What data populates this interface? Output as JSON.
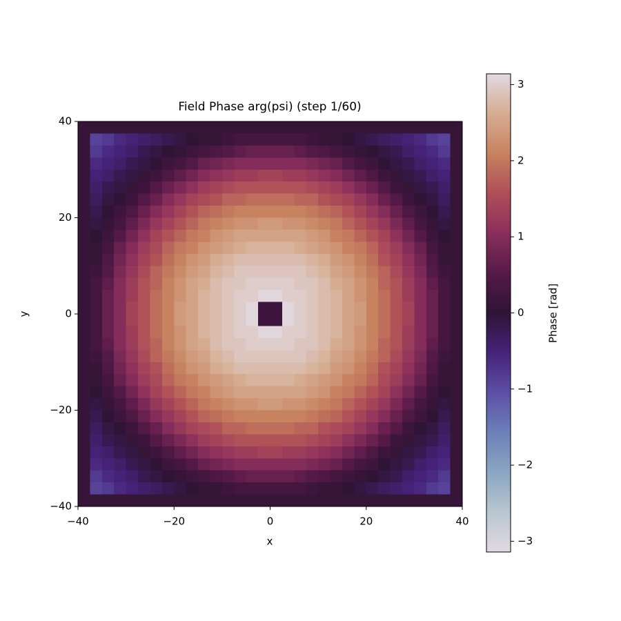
{
  "chart_data": {
    "type": "heatmap",
    "title": "Field Phase arg(psi) (step 1/60)",
    "xlabel": "x",
    "ylabel": "y",
    "xlim": [
      -40,
      40
    ],
    "ylim": [
      -40,
      40
    ],
    "xticks": [
      {
        "value": -40,
        "label": "−40"
      },
      {
        "value": -20,
        "label": "−20"
      },
      0,
      20,
      40
    ],
    "yticks": [
      {
        "value": -40,
        "label": "−40"
      },
      {
        "value": -20,
        "label": "−20"
      },
      0,
      20,
      40
    ],
    "colorbar": {
      "label": "Phase [rad]",
      "clim": [
        -3.14159,
        3.14159
      ],
      "ticks": [
        {
          "value": -3,
          "label": "−3"
        },
        {
          "value": -2,
          "label": "−2"
        },
        {
          "value": -1,
          "label": "−1"
        },
        0,
        1,
        2,
        3
      ],
      "colormap": [
        "#e2d9e2",
        "#b8c6cf",
        "#8aa6c2",
        "#6d80b8",
        "#5d4fa6",
        "#47237a",
        "#2f1436",
        "#561a48",
        "#8a2f5c",
        "#b04e58",
        "#c7825f",
        "#d6ad92",
        "#e2d9e2"
      ]
    },
    "z": [
      [
        0.1,
        0.1,
        0.1,
        0.1,
        0.1,
        0.1,
        0.1,
        0.1,
        0.1,
        0.1,
        0.1,
        0.1,
        0.1,
        0.1,
        0.1,
        0.1,
        0.1,
        0.1,
        0.1,
        0.1,
        0.1,
        0.1,
        0.1,
        0.1,
        0.1,
        0.1,
        0.1,
        0.1,
        0.1,
        0.1,
        0.1,
        0.1
      ],
      [
        0.1,
        -0.9,
        -0.8,
        -0.6,
        -0.5,
        -0.4,
        -0.3,
        -0.2,
        -0.1,
        0.0,
        0.1,
        0.1,
        0.2,
        0.3,
        0.3,
        0.3,
        0.3,
        0.3,
        0.3,
        0.2,
        0.1,
        0.1,
        0.0,
        -0.1,
        -0.2,
        -0.3,
        -0.4,
        -0.5,
        -0.6,
        -0.8,
        -0.9,
        0.1
      ],
      [
        0.1,
        -0.8,
        -0.6,
        -0.5,
        -0.4,
        -0.2,
        -0.1,
        0.0,
        0.1,
        0.2,
        0.3,
        0.4,
        0.5,
        0.6,
        0.7,
        0.7,
        0.7,
        0.7,
        0.6,
        0.5,
        0.4,
        0.3,
        0.2,
        0.1,
        0.0,
        -0.1,
        -0.2,
        -0.4,
        -0.5,
        -0.6,
        -0.8,
        0.1
      ],
      [
        0.1,
        -0.6,
        -0.5,
        -0.4,
        -0.2,
        -0.1,
        0.0,
        0.2,
        0.3,
        0.5,
        0.7,
        0.8,
        0.9,
        1.0,
        1.0,
        1.0,
        1.0,
        1.0,
        1.0,
        0.9,
        0.8,
        0.7,
        0.5,
        0.3,
        0.2,
        0.0,
        -0.1,
        -0.2,
        -0.4,
        -0.5,
        -0.6,
        0.1
      ],
      [
        0.1,
        -0.5,
        -0.4,
        -0.2,
        -0.1,
        0.1,
        0.2,
        0.4,
        0.6,
        0.8,
        1.0,
        1.1,
        1.2,
        1.3,
        1.3,
        1.4,
        1.4,
        1.3,
        1.3,
        1.2,
        1.1,
        1.0,
        0.8,
        0.6,
        0.4,
        0.2,
        0.1,
        -0.1,
        -0.2,
        -0.4,
        -0.5,
        0.1
      ],
      [
        0.1,
        -0.4,
        -0.2,
        -0.1,
        0.1,
        0.2,
        0.5,
        0.7,
        0.9,
        1.1,
        1.3,
        1.4,
        1.5,
        1.6,
        1.6,
        1.6,
        1.6,
        1.6,
        1.6,
        1.5,
        1.4,
        1.3,
        1.1,
        0.9,
        0.7,
        0.5,
        0.2,
        0.1,
        -0.1,
        -0.2,
        -0.4,
        0.1
      ],
      [
        0.1,
        -0.3,
        -0.1,
        0.0,
        0.2,
        0.5,
        0.7,
        1.0,
        1.2,
        1.4,
        1.5,
        1.6,
        1.8,
        1.8,
        1.9,
        1.9,
        1.9,
        1.9,
        1.8,
        1.8,
        1.6,
        1.5,
        1.4,
        1.2,
        1.0,
        0.7,
        0.5,
        0.2,
        0.0,
        -0.1,
        -0.3,
        0.1
      ],
      [
        0.1,
        -0.2,
        0.0,
        0.2,
        0.4,
        0.7,
        1.0,
        1.2,
        1.4,
        1.6,
        1.8,
        1.9,
        2.0,
        2.1,
        2.1,
        2.1,
        2.1,
        2.1,
        2.1,
        2.0,
        1.9,
        1.8,
        1.6,
        1.4,
        1.2,
        1.0,
        0.7,
        0.4,
        0.2,
        0.0,
        -0.2,
        0.1
      ],
      [
        0.1,
        -0.1,
        0.1,
        0.3,
        0.6,
        0.9,
        1.2,
        1.4,
        1.6,
        1.8,
        2.0,
        2.1,
        2.2,
        2.3,
        2.3,
        2.4,
        2.4,
        2.3,
        2.3,
        2.2,
        2.1,
        2.0,
        1.8,
        1.6,
        1.4,
        1.2,
        0.9,
        0.6,
        0.3,
        0.1,
        -0.1,
        0.1
      ],
      [
        0.1,
        0.0,
        0.2,
        0.5,
        0.8,
        1.1,
        1.4,
        1.6,
        1.8,
        2.0,
        2.1,
        2.3,
        2.4,
        2.5,
        2.5,
        2.5,
        2.5,
        2.5,
        2.5,
        2.4,
        2.3,
        2.1,
        2.0,
        1.8,
        1.6,
        1.4,
        1.1,
        0.8,
        0.5,
        0.2,
        0.0,
        0.1
      ],
      [
        0.1,
        0.1,
        0.3,
        0.7,
        1.0,
        1.3,
        1.5,
        1.8,
        2.0,
        2.1,
        2.3,
        2.4,
        2.5,
        2.6,
        2.7,
        2.7,
        2.7,
        2.7,
        2.6,
        2.5,
        2.4,
        2.3,
        2.1,
        2.0,
        1.8,
        1.5,
        1.3,
        1.0,
        0.7,
        0.3,
        0.1,
        0.1
      ],
      [
        0.1,
        0.1,
        0.4,
        0.8,
        1.1,
        1.4,
        1.6,
        1.9,
        2.1,
        2.3,
        2.4,
        2.6,
        2.7,
        2.8,
        2.8,
        2.8,
        2.8,
        2.8,
        2.8,
        2.7,
        2.6,
        2.4,
        2.3,
        2.1,
        1.9,
        1.6,
        1.4,
        1.1,
        0.8,
        0.4,
        0.1,
        0.1
      ],
      [
        0.1,
        0.2,
        0.5,
        0.9,
        1.2,
        1.5,
        1.8,
        2.0,
        2.2,
        2.4,
        2.5,
        2.7,
        2.8,
        2.9,
        2.9,
        2.9,
        2.9,
        2.9,
        2.9,
        2.8,
        2.7,
        2.5,
        2.4,
        2.2,
        2.0,
        1.8,
        1.5,
        1.2,
        0.9,
        0.5,
        0.2,
        0.1
      ],
      [
        0.1,
        0.3,
        0.6,
        1.0,
        1.3,
        1.6,
        1.8,
        2.1,
        2.3,
        2.5,
        2.6,
        2.8,
        2.9,
        2.9,
        3.0,
        3.0,
        3.0,
        3.0,
        2.9,
        2.9,
        2.8,
        2.6,
        2.5,
        2.3,
        2.1,
        1.8,
        1.6,
        1.3,
        1.0,
        0.6,
        0.3,
        0.1
      ],
      [
        0.1,
        0.3,
        0.7,
        1.0,
        1.3,
        1.6,
        1.9,
        2.1,
        2.3,
        2.5,
        2.7,
        2.8,
        2.9,
        3.0,
        3.0,
        3.1,
        3.1,
        3.0,
        3.0,
        2.9,
        2.8,
        2.7,
        2.5,
        2.3,
        2.1,
        1.9,
        1.6,
        1.3,
        1.0,
        0.7,
        0.3,
        0.1
      ],
      [
        0.1,
        0.3,
        0.7,
        1.0,
        1.4,
        1.6,
        1.9,
        2.1,
        2.4,
        2.5,
        2.7,
        2.8,
        2.9,
        3.0,
        3.1,
        0.2,
        0.2,
        3.1,
        3.0,
        2.9,
        2.8,
        2.7,
        2.5,
        2.4,
        2.1,
        1.9,
        1.6,
        1.4,
        1.0,
        0.7,
        0.3,
        0.1
      ],
      [
        0.1,
        0.3,
        0.7,
        1.0,
        1.4,
        1.6,
        1.9,
        2.1,
        2.4,
        2.5,
        2.7,
        2.8,
        2.9,
        3.0,
        3.1,
        0.2,
        0.2,
        3.1,
        3.0,
        2.9,
        2.8,
        2.7,
        2.5,
        2.4,
        2.1,
        1.9,
        1.6,
        1.4,
        1.0,
        0.7,
        0.3,
        0.1
      ],
      [
        0.1,
        0.3,
        0.7,
        1.0,
        1.3,
        1.6,
        1.9,
        2.1,
        2.3,
        2.5,
        2.7,
        2.8,
        2.9,
        3.0,
        3.0,
        3.1,
        3.1,
        3.0,
        3.0,
        2.9,
        2.8,
        2.7,
        2.5,
        2.3,
        2.1,
        1.9,
        1.6,
        1.3,
        1.0,
        0.7,
        0.3,
        0.1
      ],
      [
        0.1,
        0.3,
        0.6,
        1.0,
        1.3,
        1.6,
        1.8,
        2.1,
        2.3,
        2.5,
        2.6,
        2.8,
        2.9,
        2.9,
        3.0,
        3.0,
        3.0,
        3.0,
        2.9,
        2.9,
        2.8,
        2.6,
        2.5,
        2.3,
        2.1,
        1.8,
        1.6,
        1.3,
        1.0,
        0.6,
        0.3,
        0.1
      ],
      [
        0.1,
        0.2,
        0.5,
        0.9,
        1.2,
        1.5,
        1.8,
        2.0,
        2.2,
        2.4,
        2.5,
        2.7,
        2.8,
        2.9,
        2.9,
        2.9,
        2.9,
        2.9,
        2.9,
        2.8,
        2.7,
        2.5,
        2.4,
        2.2,
        2.0,
        1.8,
        1.5,
        1.2,
        0.9,
        0.5,
        0.2,
        0.1
      ],
      [
        0.1,
        0.1,
        0.4,
        0.8,
        1.1,
        1.4,
        1.6,
        1.9,
        2.1,
        2.3,
        2.4,
        2.6,
        2.7,
        2.8,
        2.8,
        2.8,
        2.8,
        2.8,
        2.8,
        2.7,
        2.6,
        2.4,
        2.3,
        2.1,
        1.9,
        1.6,
        1.4,
        1.1,
        0.8,
        0.4,
        0.1,
        0.1
      ],
      [
        0.1,
        0.1,
        0.3,
        0.7,
        1.0,
        1.3,
        1.5,
        1.8,
        2.0,
        2.1,
        2.3,
        2.4,
        2.5,
        2.6,
        2.7,
        2.7,
        2.7,
        2.7,
        2.6,
        2.5,
        2.4,
        2.3,
        2.1,
        2.0,
        1.8,
        1.5,
        1.3,
        1.0,
        0.7,
        0.3,
        0.1,
        0.1
      ],
      [
        0.1,
        0.0,
        0.2,
        0.5,
        0.8,
        1.1,
        1.4,
        1.6,
        1.8,
        2.0,
        2.1,
        2.3,
        2.4,
        2.5,
        2.5,
        2.5,
        2.5,
        2.5,
        2.5,
        2.4,
        2.3,
        2.1,
        2.0,
        1.8,
        1.6,
        1.4,
        1.1,
        0.8,
        0.5,
        0.2,
        0.0,
        0.1
      ],
      [
        0.1,
        -0.1,
        0.1,
        0.3,
        0.6,
        0.9,
        1.2,
        1.4,
        1.6,
        1.8,
        2.0,
        2.1,
        2.2,
        2.3,
        2.3,
        2.4,
        2.4,
        2.3,
        2.3,
        2.2,
        2.1,
        2.0,
        1.8,
        1.6,
        1.4,
        1.2,
        0.9,
        0.6,
        0.3,
        0.1,
        -0.1,
        0.1
      ],
      [
        0.1,
        -0.2,
        0.0,
        0.2,
        0.4,
        0.7,
        1.0,
        1.2,
        1.4,
        1.6,
        1.8,
        1.9,
        2.0,
        2.1,
        2.1,
        2.1,
        2.1,
        2.1,
        2.1,
        2.0,
        1.9,
        1.8,
        1.6,
        1.4,
        1.2,
        1.0,
        0.7,
        0.4,
        0.2,
        0.0,
        -0.2,
        0.1
      ],
      [
        0.1,
        -0.3,
        -0.1,
        0.0,
        0.2,
        0.5,
        0.7,
        1.0,
        1.2,
        1.4,
        1.5,
        1.6,
        1.8,
        1.8,
        1.9,
        1.9,
        1.9,
        1.9,
        1.8,
        1.8,
        1.6,
        1.5,
        1.4,
        1.2,
        1.0,
        0.7,
        0.5,
        0.2,
        0.0,
        -0.1,
        -0.3,
        0.1
      ],
      [
        0.1,
        -0.4,
        -0.2,
        -0.1,
        0.1,
        0.2,
        0.5,
        0.7,
        0.9,
        1.1,
        1.3,
        1.4,
        1.5,
        1.6,
        1.6,
        1.6,
        1.6,
        1.6,
        1.6,
        1.5,
        1.4,
        1.3,
        1.1,
        0.9,
        0.7,
        0.5,
        0.2,
        0.1,
        -0.1,
        -0.2,
        -0.4,
        0.1
      ],
      [
        0.1,
        -0.5,
        -0.4,
        -0.2,
        -0.1,
        0.1,
        0.2,
        0.4,
        0.6,
        0.8,
        1.0,
        1.1,
        1.2,
        1.3,
        1.3,
        1.4,
        1.4,
        1.3,
        1.3,
        1.2,
        1.1,
        1.0,
        0.8,
        0.6,
        0.4,
        0.2,
        0.1,
        -0.1,
        -0.2,
        -0.4,
        -0.5,
        0.1
      ],
      [
        0.1,
        -0.6,
        -0.5,
        -0.4,
        -0.2,
        -0.1,
        0.0,
        0.2,
        0.3,
        0.5,
        0.7,
        0.8,
        0.9,
        1.0,
        1.0,
        1.0,
        1.0,
        1.0,
        1.0,
        0.9,
        0.8,
        0.7,
        0.5,
        0.3,
        0.2,
        0.0,
        -0.1,
        -0.2,
        -0.4,
        -0.5,
        -0.6,
        0.1
      ],
      [
        0.1,
        -0.8,
        -0.6,
        -0.5,
        -0.4,
        -0.2,
        -0.1,
        0.0,
        0.1,
        0.2,
        0.3,
        0.4,
        0.5,
        0.6,
        0.7,
        0.7,
        0.7,
        0.7,
        0.6,
        0.5,
        0.4,
        0.3,
        0.2,
        0.1,
        0.0,
        -0.1,
        -0.2,
        -0.4,
        -0.5,
        -0.6,
        -0.8,
        0.1
      ],
      [
        0.1,
        -0.9,
        -0.8,
        -0.6,
        -0.5,
        -0.4,
        -0.3,
        -0.2,
        -0.1,
        0.0,
        0.1,
        0.1,
        0.2,
        0.3,
        0.3,
        0.3,
        0.3,
        0.3,
        0.3,
        0.2,
        0.1,
        0.1,
        0.0,
        -0.1,
        -0.2,
        -0.3,
        -0.4,
        -0.5,
        -0.6,
        -0.8,
        -0.9,
        0.1
      ],
      [
        0.1,
        0.1,
        0.1,
        0.1,
        0.1,
        0.1,
        0.1,
        0.1,
        0.1,
        0.1,
        0.1,
        0.1,
        0.1,
        0.1,
        0.1,
        0.1,
        0.1,
        0.1,
        0.1,
        0.1,
        0.1,
        0.1,
        0.1,
        0.1,
        0.1,
        0.1,
        0.1,
        0.1,
        0.1,
        0.1,
        0.1,
        0.1
      ]
    ]
  }
}
